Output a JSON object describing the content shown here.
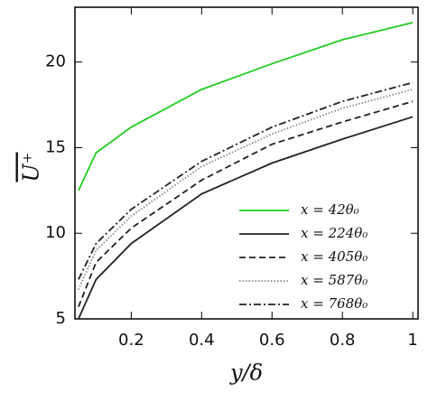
{
  "chart_data": {
    "type": "line",
    "xlabel": "y/δ",
    "ylabel": "U⁺",
    "x": [
      0.05,
      0.1,
      0.2,
      0.4,
      0.6,
      0.8,
      1.0
    ],
    "series": [
      {
        "name": "x = 42θ₀",
        "color": "#22cc22",
        "dash": "solid",
        "values": [
          12.5,
          14.7,
          16.2,
          18.4,
          19.9,
          21.3,
          22.3
        ]
      },
      {
        "name": "x = 224θ₀",
        "color": "#222222",
        "dash": "solid",
        "values": [
          5.0,
          7.3,
          9.4,
          12.3,
          14.1,
          15.5,
          16.8
        ]
      },
      {
        "name": "x = 405θ₀",
        "color": "#222222",
        "dash": "dashed",
        "values": [
          5.7,
          8.3,
          10.3,
          13.1,
          15.2,
          16.5,
          17.7
        ]
      },
      {
        "name": "x = 587θ₀",
        "color": "#888888",
        "dash": "dotted",
        "values": [
          6.7,
          9.0,
          11.0,
          13.9,
          15.8,
          17.3,
          18.4
        ]
      },
      {
        "name": "x = 768θ₀",
        "color": "#222222",
        "dash": "dashdot",
        "values": [
          7.3,
          9.4,
          11.4,
          14.2,
          16.2,
          17.7,
          18.8
        ]
      }
    ],
    "xlim": [
      0.04,
      1.015
    ],
    "ylim": [
      5,
      23.2
    ],
    "xticks": [
      0.2,
      0.4,
      0.6,
      0.8,
      1
    ],
    "yticks": [
      5,
      10,
      15,
      20
    ],
    "legend": "lower-right"
  }
}
